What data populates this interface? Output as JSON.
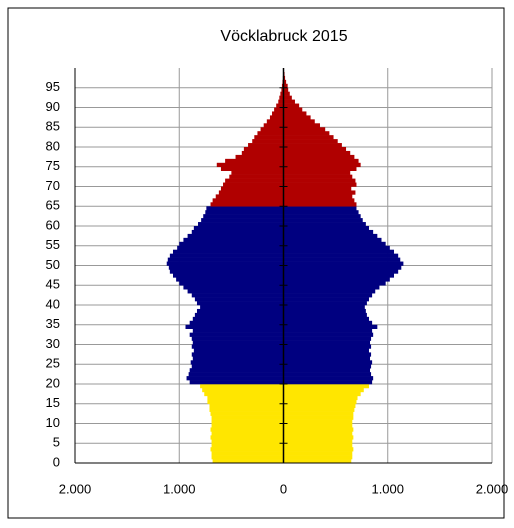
{
  "chart_data": {
    "type": "pyramid",
    "title": "Vöcklabruck 2015",
    "y": [
      0,
      1,
      2,
      3,
      4,
      5,
      6,
      7,
      8,
      9,
      10,
      11,
      12,
      13,
      14,
      15,
      16,
      17,
      18,
      19,
      20,
      21,
      22,
      23,
      24,
      25,
      26,
      27,
      28,
      29,
      30,
      31,
      32,
      33,
      34,
      35,
      36,
      37,
      38,
      39,
      40,
      41,
      42,
      43,
      44,
      45,
      46,
      47,
      48,
      49,
      50,
      51,
      52,
      53,
      54,
      55,
      56,
      57,
      58,
      59,
      60,
      61,
      62,
      63,
      64,
      65,
      66,
      67,
      68,
      69,
      70,
      71,
      72,
      73,
      74,
      75,
      76,
      77,
      78,
      79,
      80,
      81,
      82,
      83,
      84,
      85,
      86,
      87,
      88,
      89,
      90,
      91,
      92,
      93,
      94,
      95,
      96,
      97,
      98,
      99
    ],
    "series": [
      {
        "values": [
          -680,
          -690,
          -690,
          -700,
          -690,
          -690,
          -700,
          -690,
          -700,
          -690,
          -690,
          -690,
          -700,
          -710,
          -710,
          -730,
          -730,
          -760,
          -780,
          -800,
          -900,
          -930,
          -910,
          -900,
          -880,
          -890,
          -870,
          -880,
          -860,
          -880,
          -870,
          -880,
          -900,
          -870,
          -940,
          -900,
          -870,
          -850,
          -830,
          -800,
          -830,
          -850,
          -880,
          -920,
          -960,
          -1000,
          -1030,
          -1060,
          -1090,
          -1100,
          -1120,
          -1110,
          -1090,
          -1060,
          -1020,
          -1000,
          -960,
          -920,
          -880,
          -860,
          -820,
          -790,
          -770,
          -750,
          -740,
          -700,
          -680,
          -650,
          -620,
          -600,
          -580,
          -560,
          -520,
          -500,
          -600,
          -640,
          -560,
          -460,
          -400,
          -380,
          -340,
          -300,
          -280,
          -250,
          -220,
          -190,
          -160,
          -130,
          -110,
          -90,
          -70,
          -50,
          -40,
          -30,
          -20,
          -15,
          -10,
          -6,
          -4,
          -2
        ]
      },
      {
        "values": [
          650,
          660,
          660,
          670,
          660,
          660,
          670,
          660,
          670,
          660,
          660,
          670,
          670,
          680,
          690,
          700,
          710,
          740,
          770,
          820,
          850,
          860,
          840,
          830,
          840,
          850,
          830,
          840,
          820,
          840,
          830,
          840,
          860,
          850,
          900,
          850,
          820,
          800,
          790,
          780,
          800,
          820,
          850,
          880,
          920,
          980,
          1020,
          1060,
          1100,
          1130,
          1150,
          1120,
          1100,
          1060,
          1020,
          980,
          940,
          900,
          860,
          820,
          790,
          760,
          740,
          720,
          700,
          700,
          680,
          660,
          690,
          650,
          700,
          690,
          660,
          640,
          700,
          740,
          720,
          680,
          640,
          600,
          560,
          520,
          480,
          440,
          400,
          350,
          300,
          260,
          220,
          180,
          150,
          110,
          80,
          60,
          45,
          40,
          25,
          15,
          10,
          5
        ]
      }
    ],
    "color_bands": [
      {
        "until": 20,
        "color": "#ffe600"
      },
      {
        "until": 65,
        "color": "#000080"
      },
      {
        "until": 200,
        "color": "#b00000"
      }
    ],
    "xlim": [
      -2000,
      2000
    ],
    "ylim": [
      0,
      100
    ],
    "xticks": [
      {
        "value": -2000,
        "label": "2.000"
      },
      {
        "value": -1000,
        "label": "1.000"
      },
      0,
      {
        "value": 1000,
        "label": "1.000"
      },
      {
        "value": 2000,
        "label": "2.000"
      }
    ],
    "yticks": [
      0,
      5,
      10,
      15,
      20,
      25,
      30,
      35,
      40,
      45,
      50,
      55,
      60,
      65,
      70,
      75,
      80,
      85,
      90,
      95
    ],
    "grid": true
  }
}
